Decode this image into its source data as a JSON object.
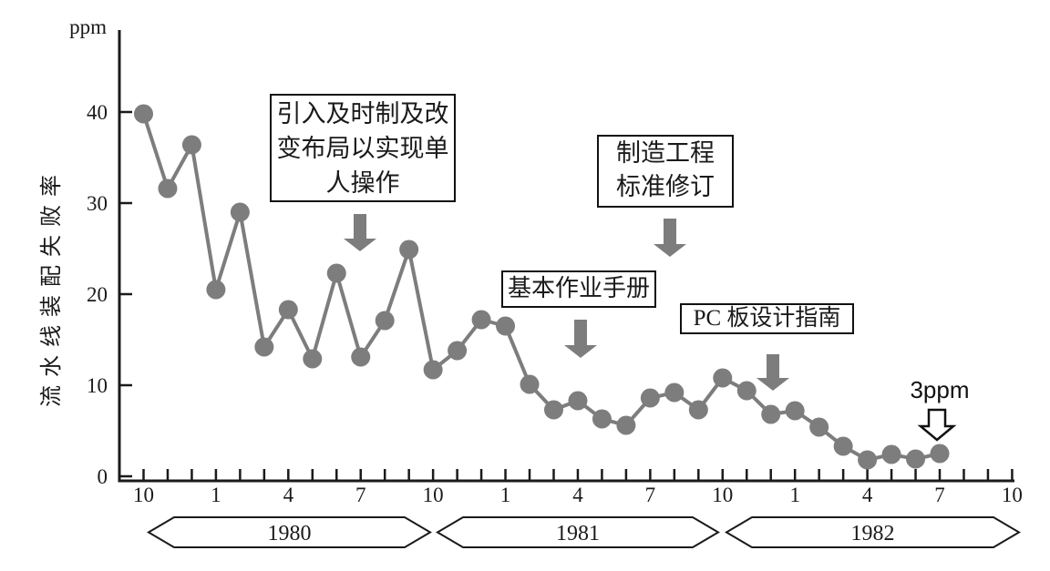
{
  "labels": {
    "ppm": "ppm",
    "y_axis_title": "流水线装配失败率",
    "final_point": "3ppm"
  },
  "annotations": [
    {
      "id": "jit-layout",
      "lines": [
        "引入及时制及改",
        "变布局以实现单",
        "人操作"
      ]
    },
    {
      "id": "mfg-standards",
      "lines": [
        "制造工程",
        "标准修订"
      ]
    },
    {
      "id": "basic-manual",
      "lines": [
        "基本作业手册"
      ]
    },
    {
      "id": "pcb-guide",
      "lines": [
        "PC 板设计指南"
      ]
    }
  ],
  "chart_data": {
    "type": "line",
    "title": "",
    "ylabel": "流水线装配失败率",
    "y_unit": "ppm",
    "ylim": [
      0,
      45
    ],
    "yticks": [
      0,
      10,
      20,
      30,
      40
    ],
    "grid": false,
    "legend": "none",
    "x_tick_month_labels": [
      "10",
      "1",
      "4",
      "7",
      "10",
      "1",
      "4",
      "7",
      "10",
      "1",
      "4",
      "7",
      "10"
    ],
    "year_bands": [
      "1980",
      "1981",
      "1982"
    ],
    "months": [
      "1979-10",
      "1979-11",
      "1979-12",
      "1980-01",
      "1980-02",
      "1980-03",
      "1980-04",
      "1980-05",
      "1980-06",
      "1980-07",
      "1980-08",
      "1980-09",
      "1980-10",
      "1980-11",
      "1980-12",
      "1981-01",
      "1981-02",
      "1981-03",
      "1981-04",
      "1981-05",
      "1981-06",
      "1981-07",
      "1981-08",
      "1981-09",
      "1981-10",
      "1981-11",
      "1981-12",
      "1982-01",
      "1982-02",
      "1982-03",
      "1982-04",
      "1982-05",
      "1982-06",
      "1982-07"
    ],
    "values": [
      39.8,
      31.6,
      36.4,
      20.5,
      29.0,
      14.2,
      18.3,
      12.9,
      22.3,
      13.1,
      17.1,
      24.9,
      11.7,
      13.8,
      17.2,
      16.5,
      10.1,
      7.3,
      8.3,
      6.3,
      5.6,
      8.6,
      9.2,
      7.3,
      10.8,
      9.4,
      6.8,
      7.2,
      5.4,
      3.3,
      1.8,
      2.4,
      1.9,
      2.5
    ],
    "final_annotation": "3ppm",
    "series_color": "#7d7d7d",
    "axis_color": "#1a1a1a"
  }
}
